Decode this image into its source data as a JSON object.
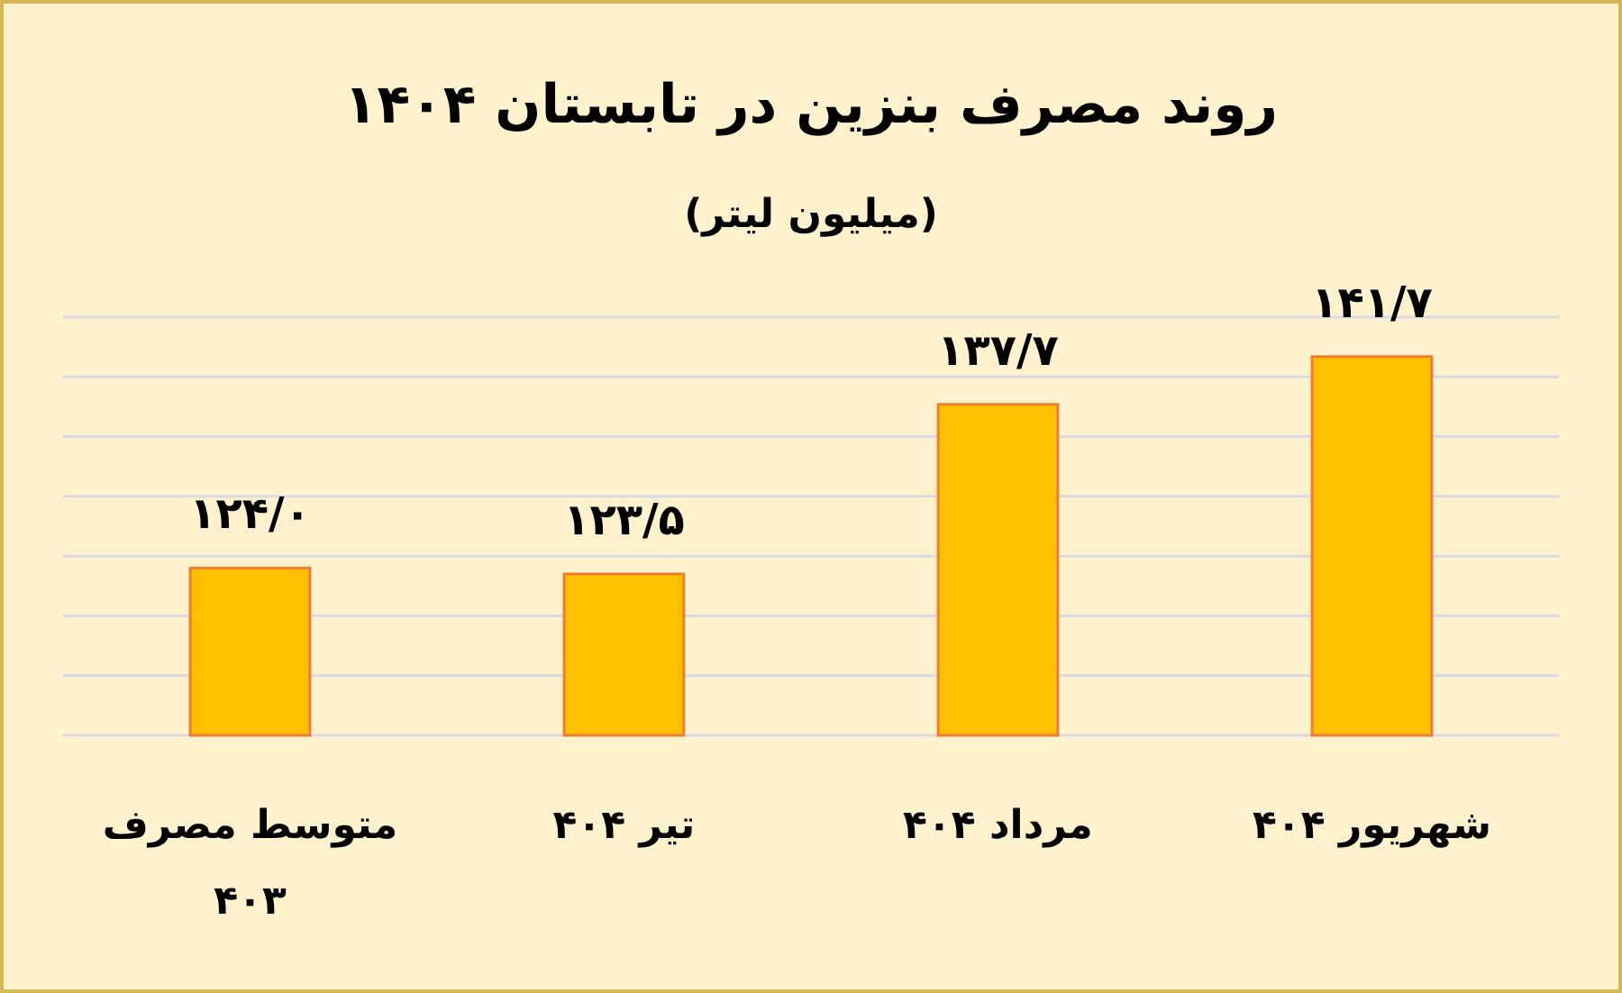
{
  "chart_data": {
    "type": "bar",
    "title": "روند مصرف بنزین در تابستان ۱۴۰۴",
    "subtitle": "(میلیون لیتر)",
    "categories": [
      "متوسط مصرف ۴۰۳",
      "تیر ۴۰۴",
      "مرداد ۴۰۴",
      "شهریور ۴۰۴"
    ],
    "values": [
      124.0,
      123.5,
      137.7,
      141.7
    ],
    "value_labels": [
      "۱۲۴/۰",
      "۱۲۳/۵",
      "۱۳۷/۷",
      "۱۴۱/۷"
    ],
    "color": "#ffc000",
    "ylim": [
      110,
      145
    ],
    "yticks": [
      {
        "value": 110,
        "label": null
      },
      {
        "value": 115,
        "label": null
      },
      {
        "value": 120,
        "label": null
      },
      {
        "value": 125,
        "label": null
      },
      {
        "value": 130,
        "label": null
      },
      {
        "value": 135,
        "label": null
      },
      {
        "value": 140,
        "label": null
      },
      {
        "value": 145,
        "label": null
      }
    ],
    "grid": "y",
    "tick_labels": "x"
  }
}
